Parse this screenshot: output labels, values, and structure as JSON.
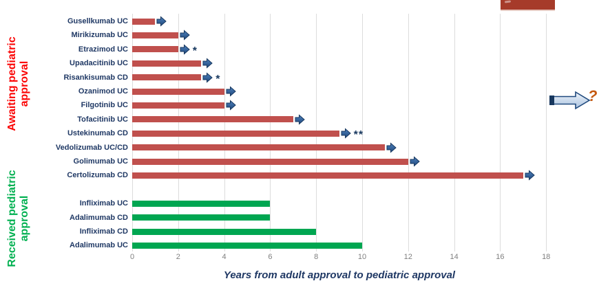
{
  "decorations": {
    "top_right_box": {
      "color": "#a63b2a"
    },
    "future_arrow": {
      "symbol": "?",
      "symbol_color": "#c55a11"
    }
  },
  "chart_data": {
    "type": "bar",
    "orientation": "horizontal",
    "title": "",
    "xlabel": "Years from adult approval to pediatric approval",
    "ylabel": "",
    "xlim": [
      0,
      18
    ],
    "x_ticks": [
      0,
      2,
      4,
      6,
      8,
      10,
      12,
      14,
      16,
      18
    ],
    "grid": true,
    "gridline_color": "#dcdcdc",
    "tick_label_color": "#7f7f7f",
    "drug_label_color": "#1f3864",
    "groups": [
      {
        "name": "Awaiting pediatric approval",
        "label_lines": "Awaiting pediatric\napproval",
        "label_color": "#fb0505",
        "bar_color": "#c0504d",
        "bars": [
          {
            "label": "Gusellkumab UC",
            "value": 1,
            "marker": "pending-arrow",
            "note": ""
          },
          {
            "label": "Mirikizumab UC",
            "value": 2,
            "marker": "pending-arrow",
            "note": ""
          },
          {
            "label": "Etrazimod UC",
            "value": 2,
            "marker": "pending-arrow",
            "note": "*"
          },
          {
            "label": "Upadacitinib UC",
            "value": 3,
            "marker": "pending-arrow",
            "note": ""
          },
          {
            "label": "Risankisumab CD",
            "value": 3,
            "marker": "pending-arrow",
            "note": "*"
          },
          {
            "label": "Ozanimod UC",
            "value": 4,
            "marker": "pending-arrow",
            "note": ""
          },
          {
            "label": "Filgotinib UC",
            "value": 4,
            "marker": "pending-arrow",
            "note": ""
          },
          {
            "label": "Tofacitinib UC",
            "value": 7,
            "marker": "pending-arrow",
            "note": ""
          },
          {
            "label": "Ustekinumab CD",
            "value": 9,
            "marker": "pending-arrow",
            "note": "**"
          },
          {
            "label": "Vedolizumab UC/CD",
            "value": 11,
            "marker": "pending-arrow",
            "note": ""
          },
          {
            "label": "Golimumab UC",
            "value": 12,
            "marker": "pending-arrow",
            "note": ""
          },
          {
            "label": "Certolizumab CD",
            "value": 17,
            "marker": "pending-arrow",
            "note": ""
          }
        ]
      },
      {
        "name": "Received pediatric approval",
        "label_lines": "Received pediatric\napproval",
        "label_color": "#00b050",
        "bar_color": "#00a651",
        "bars": [
          {
            "label": "Infliximab UC",
            "value": 6,
            "marker": "",
            "note": ""
          },
          {
            "label": "Adalimumab CD",
            "value": 6,
            "marker": "",
            "note": ""
          },
          {
            "label": "Infliximab CD",
            "value": 8,
            "marker": "",
            "note": ""
          },
          {
            "label": "Adalimumab UC",
            "value": 10,
            "marker": "",
            "note": ""
          }
        ]
      }
    ]
  }
}
